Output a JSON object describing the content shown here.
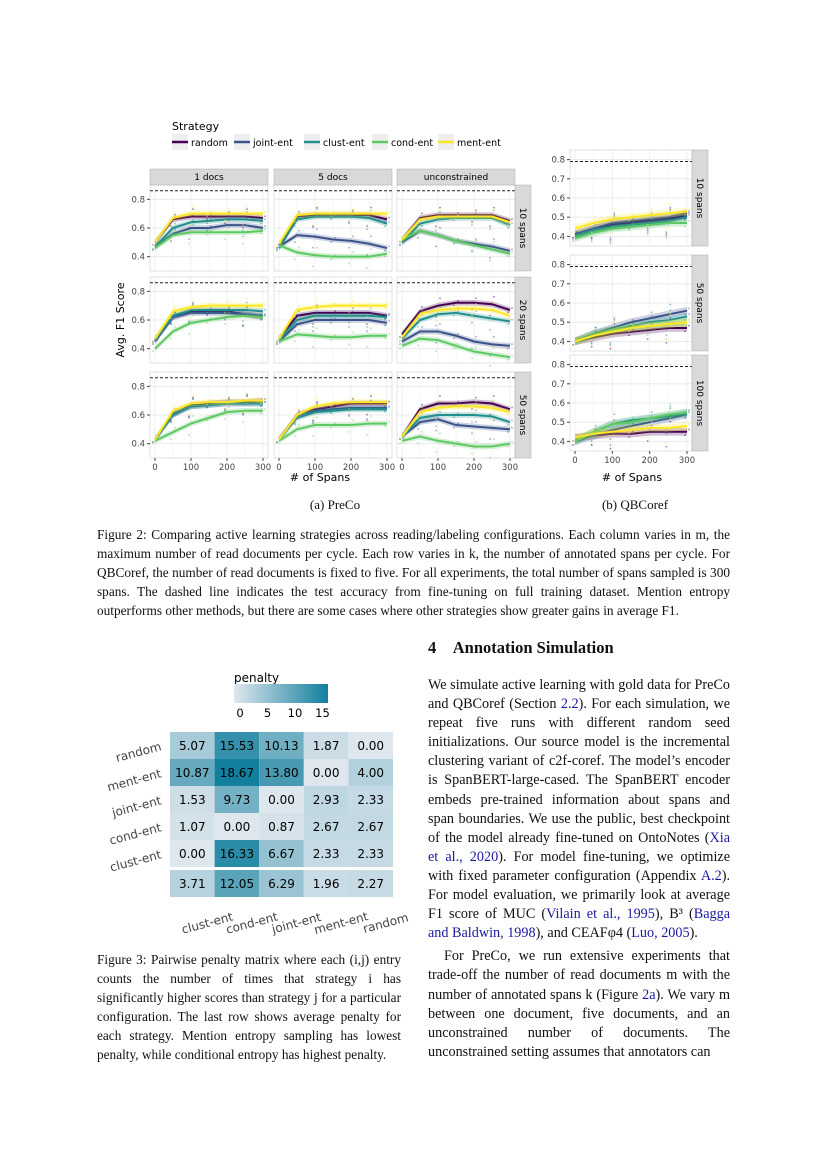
{
  "figure2": {
    "legend_title": "Strategy",
    "strategies": [
      "random",
      "joint-ent",
      "clust-ent",
      "cond-ent",
      "ment-ent"
    ],
    "colors": {
      "random": "#440154",
      "joint-ent": "#3b528b",
      "clust-ent": "#21908c",
      "cond-ent": "#5ec962",
      "ment-ent": "#fde725"
    },
    "subcaption_a": "(a) PreCo",
    "subcaption_b": "(b) QBCoref",
    "caption": "Figure 2: Comparing active learning strategies across reading/labeling configurations. Each column varies in m, the maximum number of read documents per cycle. Each row varies in k, the number of annotated spans per cycle. For QBCoref, the number of read documents is fixed to five. For all experiments, the total number of spans sampled is 300 spans. The dashed line indicates the test accuracy from fine-tuning on full training dataset. Mention entropy outperforms other methods, but there are some cases where other strategies show greater gains in average F1."
  },
  "chart_data": [
    {
      "type": "line",
      "name": "PreCo",
      "xlabel": "# of Spans",
      "ylabel": "Avg. F1 Score",
      "x": [
        0,
        50,
        100,
        150,
        200,
        250,
        300
      ],
      "xticks": [
        0,
        100,
        200,
        300
      ],
      "yticks": [
        0.4,
        0.6,
        0.8
      ],
      "ylim": [
        0.3,
        0.9
      ],
      "reference_line": 0.86,
      "columns": [
        "1 docs",
        "5 docs",
        "unconstrained"
      ],
      "rows": [
        "10 spans",
        "20 spans",
        "50 spans"
      ],
      "grid": true,
      "legend": "top-left",
      "panels": [
        [
          {
            "random": [
              0.5,
              0.66,
              0.68,
              0.68,
              0.68,
              0.68,
              0.67
            ],
            "joint-ent": [
              0.47,
              0.56,
              0.6,
              0.6,
              0.62,
              0.62,
              0.6
            ],
            "clust-ent": [
              0.47,
              0.6,
              0.64,
              0.65,
              0.66,
              0.66,
              0.65
            ],
            "cond-ent": [
              0.46,
              0.55,
              0.57,
              0.57,
              0.57,
              0.57,
              0.58
            ],
            "ment-ent": [
              0.5,
              0.67,
              0.7,
              0.7,
              0.7,
              0.7,
              0.7
            ]
          },
          {
            "random": [
              0.48,
              0.68,
              0.69,
              0.69,
              0.69,
              0.69,
              0.66
            ],
            "joint-ent": [
              0.47,
              0.55,
              0.54,
              0.52,
              0.51,
              0.49,
              0.46
            ],
            "clust-ent": [
              0.46,
              0.66,
              0.68,
              0.68,
              0.68,
              0.67,
              0.63
            ],
            "cond-ent": [
              0.48,
              0.43,
              0.41,
              0.4,
              0.4,
              0.4,
              0.42
            ],
            "ment-ent": [
              0.49,
              0.69,
              0.7,
              0.7,
              0.7,
              0.7,
              0.7
            ]
          },
          {
            "random": [
              0.52,
              0.67,
              0.69,
              0.69,
              0.69,
              0.69,
              0.65
            ],
            "joint-ent": [
              0.5,
              0.58,
              0.55,
              0.51,
              0.49,
              0.47,
              0.44
            ],
            "clust-ent": [
              0.5,
              0.63,
              0.66,
              0.67,
              0.67,
              0.67,
              0.62
            ],
            "cond-ent": [
              0.52,
              0.58,
              0.55,
              0.51,
              0.48,
              0.45,
              0.42
            ],
            "ment-ent": [
              0.52,
              0.66,
              0.68,
              0.68,
              0.68,
              0.68,
              0.64
            ]
          }
        ],
        [
          {
            "random": [
              0.47,
              0.62,
              0.66,
              0.66,
              0.66,
              0.64,
              0.62
            ],
            "joint-ent": [
              0.45,
              0.62,
              0.65,
              0.65,
              0.65,
              0.64,
              0.63
            ],
            "clust-ent": [
              0.46,
              0.63,
              0.67,
              0.67,
              0.67,
              0.67,
              0.66
            ],
            "cond-ent": [
              0.4,
              0.52,
              0.58,
              0.6,
              0.62,
              0.63,
              0.62
            ],
            "ment-ent": [
              0.47,
              0.66,
              0.69,
              0.7,
              0.7,
              0.7,
              0.7
            ]
          },
          {
            "random": [
              0.47,
              0.63,
              0.65,
              0.65,
              0.65,
              0.65,
              0.63
            ],
            "joint-ent": [
              0.45,
              0.57,
              0.6,
              0.6,
              0.6,
              0.6,
              0.58
            ],
            "clust-ent": [
              0.46,
              0.6,
              0.63,
              0.63,
              0.63,
              0.63,
              0.62
            ],
            "cond-ent": [
              0.45,
              0.5,
              0.49,
              0.48,
              0.48,
              0.49,
              0.49
            ],
            "ment-ent": [
              0.47,
              0.67,
              0.69,
              0.7,
              0.7,
              0.7,
              0.7
            ]
          },
          {
            "random": [
              0.5,
              0.66,
              0.7,
              0.72,
              0.72,
              0.71,
              0.67
            ],
            "joint-ent": [
              0.45,
              0.52,
              0.52,
              0.49,
              0.45,
              0.43,
              0.42
            ],
            "clust-ent": [
              0.47,
              0.6,
              0.64,
              0.65,
              0.63,
              0.61,
              0.59
            ],
            "cond-ent": [
              0.42,
              0.47,
              0.46,
              0.42,
              0.38,
              0.36,
              0.34
            ],
            "ment-ent": [
              0.48,
              0.64,
              0.67,
              0.68,
              0.68,
              0.67,
              0.63
            ]
          }
        ],
        [
          {
            "random": [
              0.43,
              0.6,
              0.67,
              0.68,
              0.69,
              0.69,
              0.7
            ],
            "joint-ent": [
              0.43,
              0.61,
              0.66,
              0.67,
              0.68,
              0.68,
              0.68
            ],
            "clust-ent": [
              0.43,
              0.6,
              0.66,
              0.67,
              0.68,
              0.68,
              0.68
            ],
            "cond-ent": [
              0.42,
              0.48,
              0.54,
              0.58,
              0.62,
              0.63,
              0.63
            ],
            "ment-ent": [
              0.43,
              0.63,
              0.68,
              0.69,
              0.69,
              0.7,
              0.7
            ]
          },
          {
            "random": [
              0.43,
              0.6,
              0.64,
              0.66,
              0.68,
              0.68,
              0.68
            ],
            "joint-ent": [
              0.43,
              0.59,
              0.63,
              0.64,
              0.65,
              0.65,
              0.65
            ],
            "clust-ent": [
              0.43,
              0.58,
              0.62,
              0.63,
              0.64,
              0.64,
              0.64
            ],
            "cond-ent": [
              0.42,
              0.5,
              0.53,
              0.53,
              0.53,
              0.54,
              0.54
            ],
            "ment-ent": [
              0.43,
              0.6,
              0.66,
              0.68,
              0.69,
              0.69,
              0.69
            ]
          },
          {
            "random": [
              0.45,
              0.64,
              0.68,
              0.68,
              0.69,
              0.68,
              0.64
            ],
            "joint-ent": [
              0.45,
              0.55,
              0.57,
              0.53,
              0.52,
              0.51,
              0.5
            ],
            "clust-ent": [
              0.45,
              0.58,
              0.6,
              0.6,
              0.6,
              0.59,
              0.55
            ],
            "cond-ent": [
              0.42,
              0.45,
              0.42,
              0.4,
              0.38,
              0.38,
              0.4
            ],
            "ment-ent": [
              0.45,
              0.62,
              0.65,
              0.66,
              0.66,
              0.65,
              0.62
            ]
          }
        ]
      ]
    },
    {
      "type": "line",
      "name": "QBCoref",
      "xlabel": "# of Spans",
      "x": [
        0,
        50,
        100,
        150,
        200,
        250,
        300
      ],
      "xticks": [
        0,
        100,
        200,
        300
      ],
      "yticks": [
        0.4,
        0.5,
        0.6,
        0.7,
        0.8
      ],
      "ylim": [
        0.35,
        0.85
      ],
      "reference_line": 0.79,
      "rows": [
        "10 spans",
        "50 spans",
        "100 spans"
      ],
      "grid": true,
      "panels": [
        {
          "random": [
            0.41,
            0.44,
            0.46,
            0.47,
            0.48,
            0.49,
            0.51
          ],
          "joint-ent": [
            0.41,
            0.44,
            0.47,
            0.48,
            0.49,
            0.5,
            0.52
          ],
          "clust-ent": [
            0.4,
            0.43,
            0.45,
            0.46,
            0.47,
            0.48,
            0.5
          ],
          "cond-ent": [
            0.39,
            0.42,
            0.44,
            0.45,
            0.46,
            0.47,
            0.47
          ],
          "ment-ent": [
            0.44,
            0.47,
            0.49,
            0.5,
            0.51,
            0.52,
            0.53
          ]
        },
        {
          "random": [
            0.4,
            0.42,
            0.44,
            0.45,
            0.46,
            0.47,
            0.47
          ],
          "joint-ent": [
            0.4,
            0.44,
            0.47,
            0.5,
            0.52,
            0.54,
            0.56
          ],
          "clust-ent": [
            0.4,
            0.44,
            0.46,
            0.48,
            0.5,
            0.51,
            0.53
          ],
          "cond-ent": [
            0.4,
            0.43,
            0.46,
            0.47,
            0.48,
            0.49,
            0.5
          ],
          "ment-ent": [
            0.4,
            0.43,
            0.45,
            0.47,
            0.48,
            0.49,
            0.5
          ]
        },
        {
          "random": [
            0.42,
            0.43,
            0.44,
            0.44,
            0.45,
            0.45,
            0.45
          ],
          "joint-ent": [
            0.4,
            0.43,
            0.46,
            0.48,
            0.5,
            0.52,
            0.54
          ],
          "clust-ent": [
            0.4,
            0.45,
            0.49,
            0.51,
            0.52,
            0.53,
            0.55
          ],
          "cond-ent": [
            0.4,
            0.45,
            0.49,
            0.5,
            0.52,
            0.54,
            0.55
          ],
          "ment-ent": [
            0.42,
            0.44,
            0.45,
            0.46,
            0.47,
            0.47,
            0.48
          ]
        }
      ]
    },
    {
      "type": "heatmap",
      "legend_title": "penalty",
      "legend_ticks": [
        0,
        5,
        10,
        15
      ],
      "color_low": "#dfe7ee",
      "color_high": "#117f9d",
      "row_labels": [
        "random",
        "ment-ent",
        "joint-ent",
        "cond-ent",
        "clust-ent",
        ""
      ],
      "col_labels": [
        "clust-ent",
        "cond-ent",
        "joint-ent",
        "ment-ent",
        "random"
      ],
      "values": [
        [
          "5.07",
          "15.53",
          "10.13",
          "1.87",
          "0.00"
        ],
        [
          "10.87",
          "18.67",
          "13.80",
          "0.00",
          "4.00"
        ],
        [
          "1.53",
          "9.73",
          "0.00",
          "2.93",
          "2.33"
        ],
        [
          "1.07",
          "0.00",
          "0.87",
          "2.67",
          "2.67"
        ],
        [
          "0.00",
          "16.33",
          "6.67",
          "2.33",
          "2.33"
        ],
        [
          "3.71",
          "12.05",
          "6.29",
          "1.96",
          "2.27"
        ]
      ]
    }
  ],
  "figure3": {
    "caption": "Figure 3: Pairwise penalty matrix where each (i,j) entry counts the number of times that strategy i has significantly higher scores than strategy j for a particular configuration. The last row shows average penalty for each strategy. Mention entropy sampling has lowest penalty, while conditional entropy has highest penalty."
  },
  "section": {
    "number": "4",
    "title": "Annotation Simulation",
    "paragraphs": [
      [
        {
          "t": "We simulate active learning with gold data for PreCo and QBCoref (Section "
        },
        {
          "t": "2.2",
          "link": true
        },
        {
          "t": "). For each simulation, we repeat five runs with different random seed initializations. Our source model is the incremental clustering variant of c2f-coref. The model’s encoder is SpanBERT-large-cased. The SpanBERT encoder embeds pre-trained information about spans and span boundaries. We use the public, best checkpoint of the model already fine-tuned on OntoNotes ("
        },
        {
          "t": "Xia et al., 2020",
          "link": true
        },
        {
          "t": "). For model fine-tuning, we optimize with fixed parameter configuration (Appendix "
        },
        {
          "t": "A.2",
          "link": true
        },
        {
          "t": "). For model evaluation, we primarily look at average F1 score of MUC ("
        },
        {
          "t": "Vilain et al., 1995",
          "link": true
        },
        {
          "t": "), B³ ("
        },
        {
          "t": "Bagga and Baldwin, 1998",
          "link": true
        },
        {
          "t": "), and CEAFφ4 ("
        },
        {
          "t": "Luo, 2005",
          "link": true
        },
        {
          "t": ")."
        }
      ],
      [
        {
          "t": "For PreCo, we run extensive experiments that trade-off the number of read documents m with the number of annotated spans k (Figure "
        },
        {
          "t": "2a",
          "link": true
        },
        {
          "t": "). We vary m between one document, five documents, and an unconstrained number of documents. The unconstrained setting assumes that annotators can"
        }
      ]
    ]
  }
}
